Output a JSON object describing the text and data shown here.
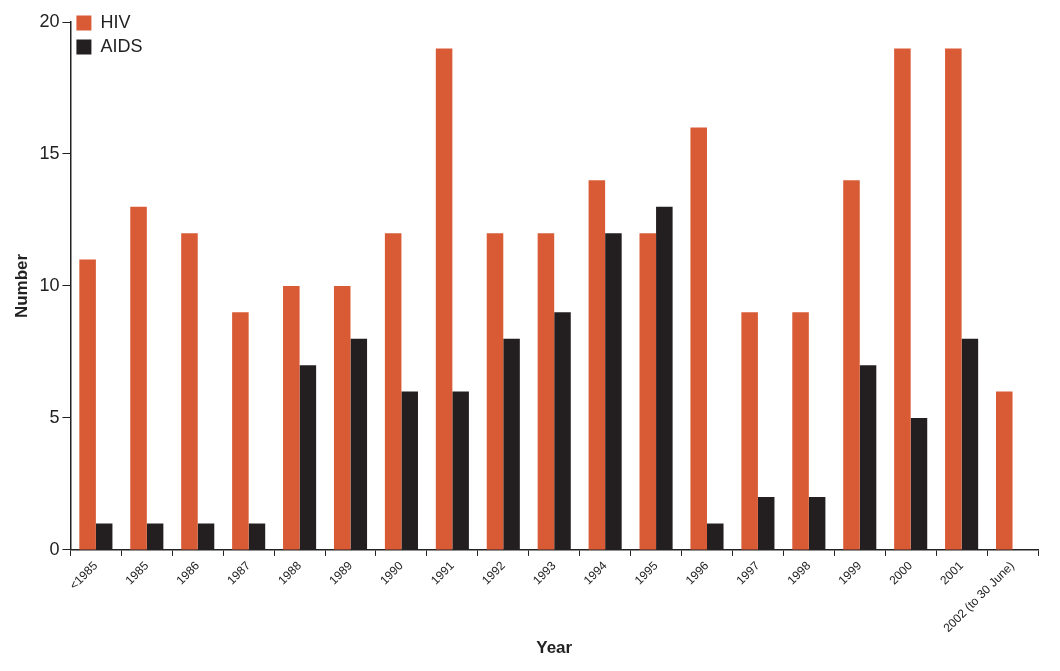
{
  "chart_data": {
    "type": "bar",
    "xlabel": "Year",
    "ylabel": "Number",
    "categories": [
      "<1985",
      "1985",
      "1986",
      "1987",
      "1988",
      "1989",
      "1990",
      "1991",
      "1992",
      "1993",
      "1994",
      "1995",
      "1996",
      "1997",
      "1998",
      "1999",
      "2000",
      "2001",
      "2002 (to 30 June)"
    ],
    "series": [
      {
        "name": "HIV",
        "color": "#d95b35",
        "values": [
          11,
          13,
          12,
          9,
          10,
          10,
          12,
          19,
          12,
          12,
          14,
          12,
          16,
          9,
          9,
          14,
          19,
          19,
          6
        ]
      },
      {
        "name": "AIDS",
        "color": "#231f20",
        "values": [
          1,
          1,
          1,
          1,
          7,
          8,
          6,
          6,
          8,
          9,
          12,
          13,
          1,
          2,
          2,
          7,
          5,
          8,
          null
        ]
      }
    ],
    "ylim": [
      0,
      20
    ],
    "yticks": [
      0,
      5,
      10,
      15,
      20
    ],
    "grid": false,
    "legend": "top left"
  }
}
